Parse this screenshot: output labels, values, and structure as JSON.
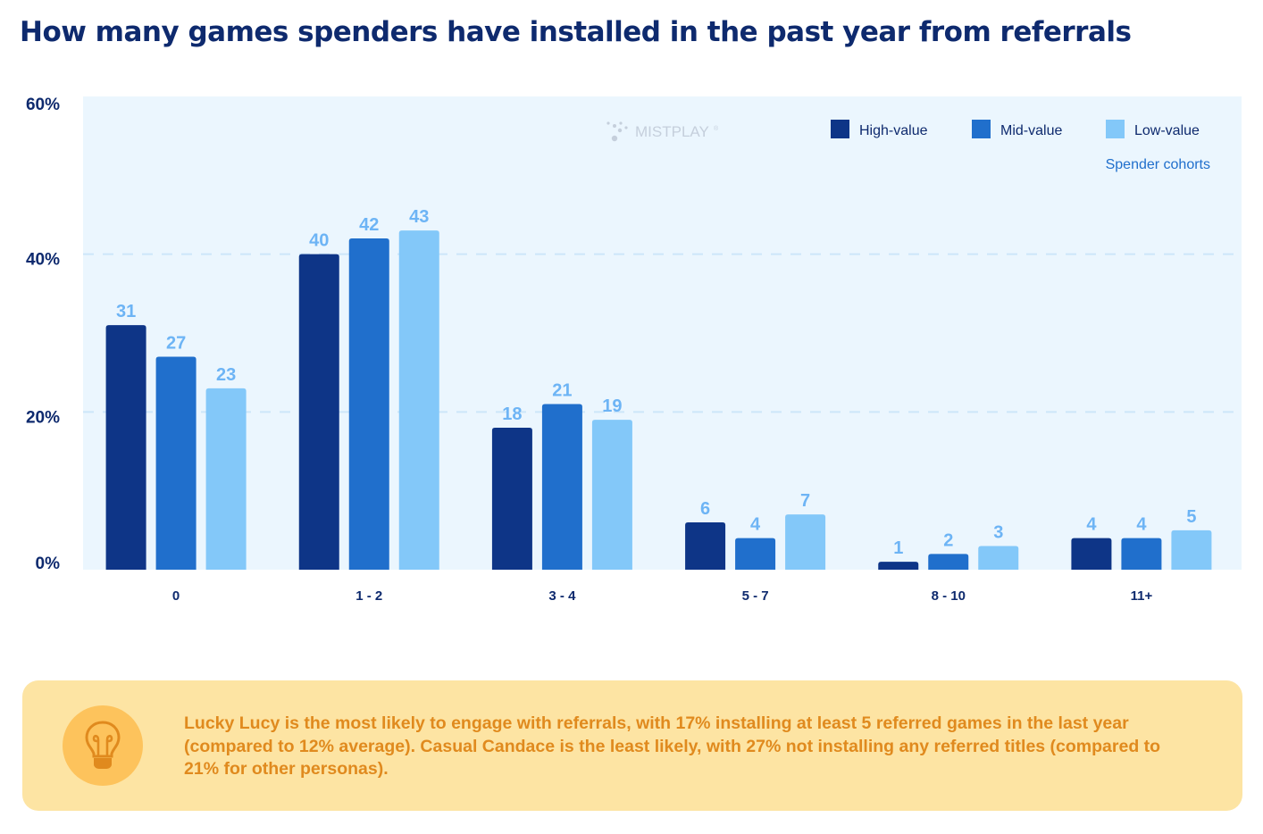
{
  "title": "How many games spenders have installed in the past year from referrals",
  "watermark": "MISTPLAY",
  "legend_note": "Spender cohorts",
  "colors": {
    "high": "#0e3587",
    "mid": "#206fcc",
    "low": "#83c8f9",
    "label": "#6db4f5",
    "axis_text": "#0e2a6e",
    "plot_bg": "#ebf6fe",
    "grid": "#cde6f9"
  },
  "chart_data": {
    "type": "bar",
    "title": "How many games spenders have installed in the past year from referrals",
    "xlabel": "",
    "ylabel": "",
    "ylim": [
      0,
      60
    ],
    "yticks": [
      0,
      20,
      40,
      60
    ],
    "ytick_labels": [
      "0%",
      "20%",
      "40%",
      "60%"
    ],
    "grid": true,
    "legend_position": "top-right",
    "legend_title": "Spender cohorts",
    "categories": [
      "0",
      "1 - 2",
      "3 - 4",
      "5 - 7",
      "8 - 10",
      "11+"
    ],
    "series": [
      {
        "name": "High-value",
        "values": [
          31,
          40,
          18,
          6,
          1,
          4
        ]
      },
      {
        "name": "Mid-value",
        "values": [
          27,
          42,
          21,
          4,
          2,
          4
        ]
      },
      {
        "name": "Low-value",
        "values": [
          23,
          43,
          19,
          7,
          3,
          5
        ]
      }
    ]
  },
  "callout": {
    "icon": "lightbulb-icon",
    "text": "Lucky Lucy is the most likely to engage with referrals, with 17% installing at least 5 referred games in the last year (compared to 12% average). Casual Candace is the least likely, with 27% not installing any referred titles (compared to 21% for other personas)."
  }
}
